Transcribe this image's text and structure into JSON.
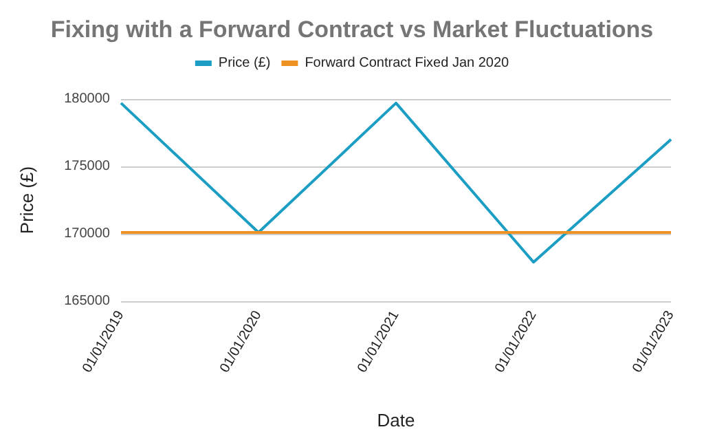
{
  "chart_data": {
    "type": "line",
    "title": "Fixing with a Forward Contract vs Market Fluctuations",
    "xlabel": "Date",
    "ylabel": "Price (£)",
    "categories": [
      "01/01/2019",
      "01/01/2020",
      "01/01/2021",
      "01/01/2022",
      "01/01/2023"
    ],
    "series": [
      {
        "name": "Price (£)",
        "color": "#1b9dc4",
        "values": [
          179700,
          170100,
          179700,
          167900,
          177000
        ]
      },
      {
        "name": "Forward Contract Fixed Jan 2020",
        "color": "#ee9223",
        "values": [
          170100,
          170100,
          170100,
          170100,
          170100
        ]
      }
    ],
    "ylim": [
      165000,
      180000
    ],
    "yticks": [
      165000,
      170000,
      175000,
      180000
    ],
    "grid": "y",
    "legend": "top",
    "marker": "none"
  }
}
